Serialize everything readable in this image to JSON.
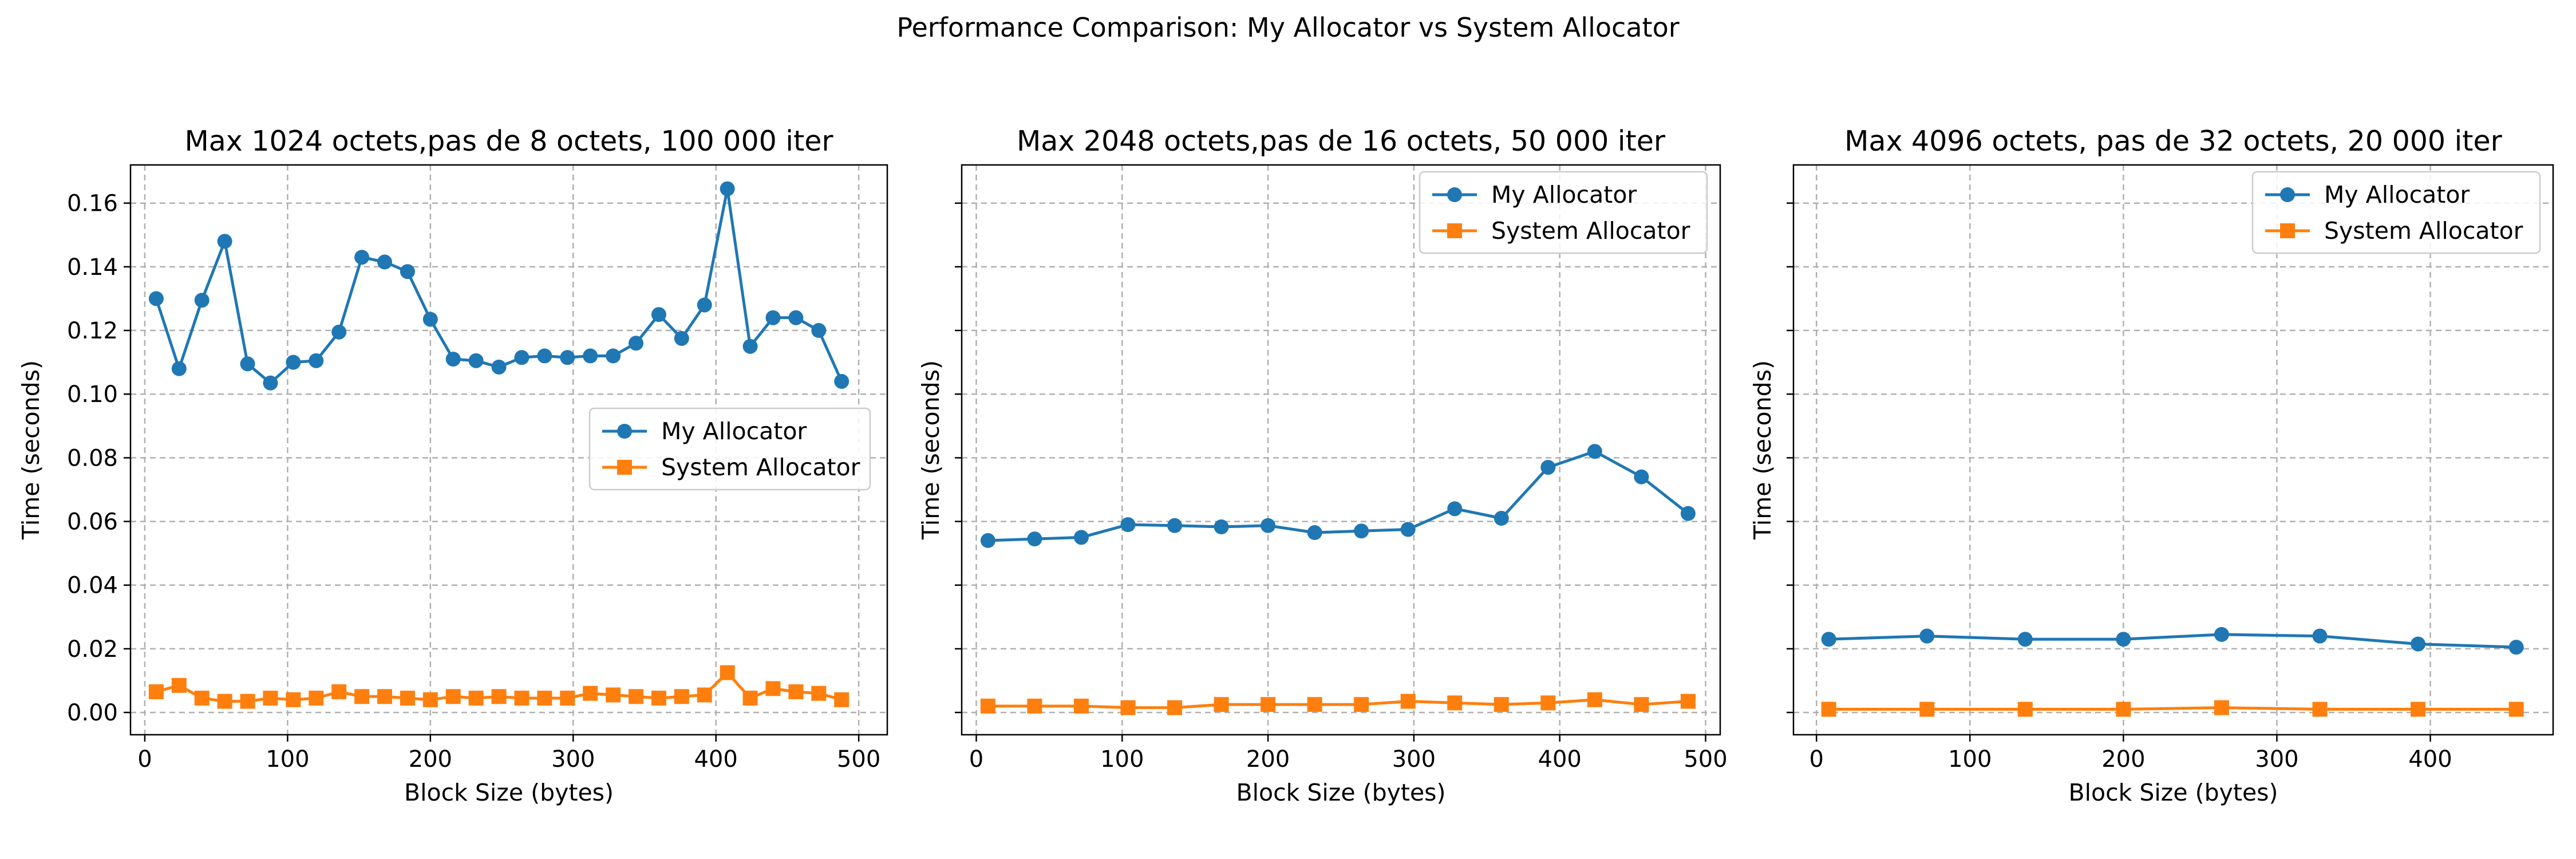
{
  "figure": {
    "title": "Performance Comparison: My Allocator vs System Allocator"
  },
  "colors": {
    "my_allocator": "#1f77b4",
    "system_allocator": "#ff7f0e"
  },
  "chart_data": [
    {
      "type": "line",
      "title": "Max 1024 octets,pas de 8 octets, 100 000 iter",
      "xlabel": "Block Size (bytes)",
      "ylabel": "Time (seconds)",
      "xlim": [
        -10,
        520
      ],
      "ylim": [
        -0.007,
        0.172
      ],
      "xticks": [
        0,
        100,
        200,
        300,
        400,
        500
      ],
      "yticks": [
        0.0,
        0.02,
        0.04,
        0.06,
        0.08,
        0.1,
        0.12,
        0.14,
        0.16
      ],
      "ytick_labels": [
        "0.00",
        "0.02",
        "0.04",
        "0.06",
        "0.08",
        "0.10",
        "0.12",
        "0.14",
        "0.16"
      ],
      "show_ytick_labels": true,
      "grid": true,
      "legend": "center-right",
      "x": [
        8,
        24,
        40,
        56,
        72,
        88,
        104,
        120,
        136,
        152,
        168,
        184,
        200,
        216,
        232,
        248,
        264,
        280,
        296,
        312,
        328,
        344,
        360,
        376,
        392,
        408,
        424,
        440,
        456,
        472,
        488
      ],
      "series": [
        {
          "name": "My Allocator",
          "marker": "circle",
          "values": [
            0.13,
            0.108,
            0.1295,
            0.148,
            0.1095,
            0.1035,
            0.11,
            0.1105,
            0.1195,
            0.143,
            0.1415,
            0.1385,
            0.1235,
            0.111,
            0.1105,
            0.1085,
            0.1115,
            0.112,
            0.1115,
            0.112,
            0.112,
            0.116,
            0.125,
            0.1175,
            0.128,
            0.1645,
            0.115,
            0.124,
            0.124,
            0.12,
            0.104
          ]
        },
        {
          "name": "System Allocator",
          "marker": "square",
          "values": [
            0.0065,
            0.0085,
            0.0045,
            0.0035,
            0.0035,
            0.0045,
            0.004,
            0.0045,
            0.0065,
            0.005,
            0.005,
            0.0045,
            0.004,
            0.005,
            0.0045,
            0.005,
            0.0045,
            0.0045,
            0.0045,
            0.006,
            0.0055,
            0.005,
            0.0045,
            0.005,
            0.0055,
            0.0125,
            0.0045,
            0.0075,
            0.0065,
            0.006,
            0.004
          ]
        }
      ]
    },
    {
      "type": "line",
      "title": "Max 2048 octets,pas de 16 octets, 50 000 iter",
      "xlabel": "Block Size (bytes)",
      "ylabel": "Time (seconds)",
      "xlim": [
        -10,
        510
      ],
      "ylim": [
        -0.007,
        0.172
      ],
      "xticks": [
        0,
        100,
        200,
        300,
        400,
        500
      ],
      "yticks": [
        0.0,
        0.02,
        0.04,
        0.06,
        0.08,
        0.1,
        0.12,
        0.14,
        0.16
      ],
      "ytick_labels": [],
      "show_ytick_labels": false,
      "grid": true,
      "legend": "upper-right",
      "x": [
        8,
        40,
        72,
        104,
        136,
        168,
        200,
        232,
        264,
        296,
        328,
        360,
        392,
        424,
        456,
        488
      ],
      "series": [
        {
          "name": "My Allocator",
          "marker": "circle",
          "values": [
            0.054,
            0.0545,
            0.055,
            0.059,
            0.0587,
            0.0583,
            0.0587,
            0.0565,
            0.057,
            0.0575,
            0.064,
            0.061,
            0.077,
            0.082,
            0.074,
            0.0625
          ]
        },
        {
          "name": "System Allocator",
          "marker": "square",
          "values": [
            0.002,
            0.002,
            0.002,
            0.0015,
            0.0015,
            0.0025,
            0.0025,
            0.0025,
            0.0025,
            0.0035,
            0.003,
            0.0025,
            0.003,
            0.004,
            0.0025,
            0.0035
          ]
        }
      ]
    },
    {
      "type": "line",
      "title": "Max 4096 octets, pas de 32 octets, 20 000 iter",
      "xlabel": "Block Size (bytes)",
      "ylabel": "Time (seconds)",
      "xlim": [
        -15,
        480
      ],
      "ylim": [
        -0.007,
        0.172
      ],
      "xticks": [
        0,
        100,
        200,
        300,
        400
      ],
      "yticks": [
        0.0,
        0.02,
        0.04,
        0.06,
        0.08,
        0.1,
        0.12,
        0.14,
        0.16
      ],
      "ytick_labels": [],
      "show_ytick_labels": false,
      "grid": true,
      "legend": "upper-right",
      "x": [
        8,
        72,
        136,
        200,
        264,
        328,
        392,
        456
      ],
      "series": [
        {
          "name": "My Allocator",
          "marker": "circle",
          "values": [
            0.023,
            0.024,
            0.023,
            0.023,
            0.0245,
            0.024,
            0.0215,
            0.0205
          ]
        },
        {
          "name": "System Allocator",
          "marker": "square",
          "values": [
            0.001,
            0.001,
            0.001,
            0.001,
            0.0015,
            0.001,
            0.001,
            0.001
          ]
        }
      ]
    }
  ]
}
